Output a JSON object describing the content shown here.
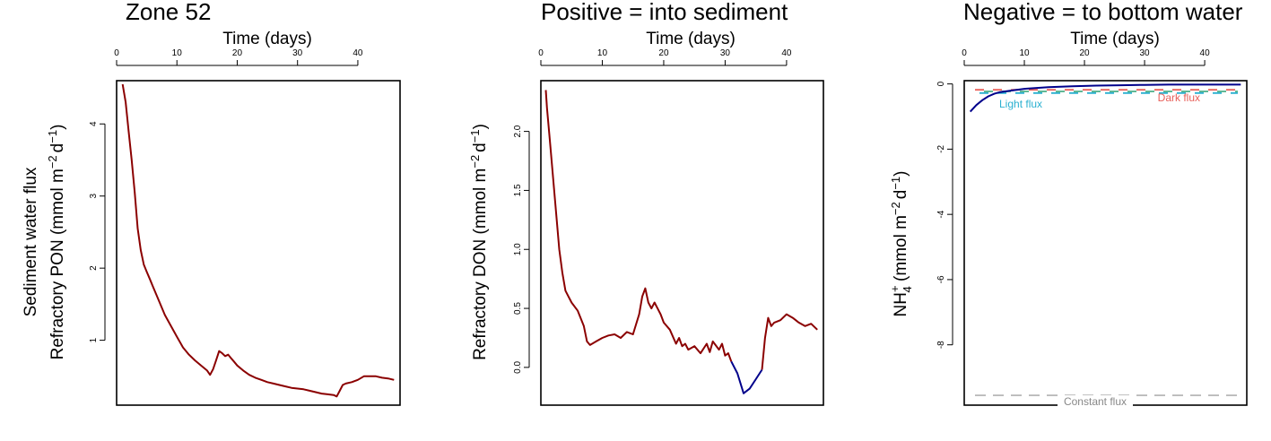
{
  "chart_data": [
    {
      "type": "line",
      "title": "Zone 52",
      "title_color": "#000000",
      "xlabel": "Time (days)",
      "ylabel": "Sediment water flux",
      "ylabel2": "Refractory PON (mmol m",
      "xlim": [
        0,
        47
      ],
      "ylim": [
        0.1,
        4.6
      ],
      "xticks": [
        0,
        10,
        20,
        30,
        40
      ],
      "yticks": [
        1,
        2,
        3,
        4
      ],
      "series": [
        {
          "color": "#8B0000",
          "x": [
            1,
            1.5,
            2,
            2.5,
            3,
            3.5,
            4,
            4.5,
            5,
            5.5,
            6,
            7,
            8,
            9,
            10,
            11,
            12,
            13,
            14,
            15,
            15.5,
            16,
            16.5,
            17,
            17.5,
            18,
            18.5,
            19,
            19.5,
            20,
            21,
            22,
            23,
            24,
            25,
            26,
            27,
            28,
            29,
            30,
            31,
            32,
            33,
            34,
            35,
            36,
            36.5,
            37,
            37.5,
            38,
            39,
            40,
            41,
            42,
            43,
            44,
            45,
            46
          ],
          "y": [
            4.55,
            4.3,
            3.9,
            3.5,
            3.05,
            2.55,
            2.25,
            2.05,
            1.95,
            1.85,
            1.75,
            1.55,
            1.35,
            1.2,
            1.05,
            0.9,
            0.8,
            0.72,
            0.65,
            0.58,
            0.52,
            0.6,
            0.72,
            0.85,
            0.82,
            0.78,
            0.8,
            0.75,
            0.7,
            0.65,
            0.58,
            0.52,
            0.48,
            0.45,
            0.42,
            0.4,
            0.38,
            0.36,
            0.34,
            0.33,
            0.32,
            0.3,
            0.28,
            0.26,
            0.25,
            0.24,
            0.22,
            0.3,
            0.38,
            0.4,
            0.42,
            0.45,
            0.5,
            0.5,
            0.5,
            0.48,
            0.47,
            0.45
          ]
        }
      ]
    },
    {
      "type": "line",
      "title": "Positive = into sediment",
      "title_color": "#8B0000",
      "xlabel": "Time (days)",
      "ylabel": "Refractory DON (mmol m",
      "xlim": [
        0,
        46
      ],
      "ylim": [
        -0.32,
        2.43
      ],
      "xticks": [
        0,
        10,
        20,
        30,
        40
      ],
      "yticks": [
        0.0,
        0.5,
        1.0,
        1.5,
        2.0
      ],
      "ytick_labels": [
        "0.0",
        "0.5",
        "1.0",
        "1.5",
        "2.0"
      ],
      "series": [
        {
          "color": "#8B0000",
          "x": [
            0.8,
            1,
            1.5,
            2,
            2.5,
            3,
            3.5,
            4,
            5,
            6,
            7,
            7.5,
            8,
            9,
            10,
            11,
            12,
            13,
            14,
            15,
            16,
            16.5,
            17,
            17.5,
            18,
            18.5,
            19,
            19.5,
            20,
            21,
            22,
            22.5,
            23,
            23.5,
            24,
            25,
            26,
            27,
            27.5,
            28,
            29,
            29.5,
            30,
            30.5,
            31
          ],
          "y": [
            2.35,
            2.2,
            1.9,
            1.6,
            1.3,
            1.0,
            0.8,
            0.65,
            0.55,
            0.48,
            0.35,
            0.22,
            0.19,
            0.22,
            0.25,
            0.27,
            0.28,
            0.25,
            0.3,
            0.28,
            0.45,
            0.6,
            0.67,
            0.55,
            0.5,
            0.55,
            0.5,
            0.45,
            0.38,
            0.32,
            0.2,
            0.25,
            0.18,
            0.2,
            0.15,
            0.18,
            0.12,
            0.2,
            0.13,
            0.22,
            0.15,
            0.2,
            0.1,
            0.12,
            0.05
          ]
        },
        {
          "color": "#00008B",
          "x": [
            31,
            32,
            33,
            34,
            35,
            36
          ],
          "y": [
            0.05,
            -0.05,
            -0.22,
            -0.18,
            -0.1,
            -0.02
          ]
        },
        {
          "color": "#8B0000",
          "x": [
            36,
            36.5,
            37,
            37.5,
            38,
            39,
            40,
            41,
            42,
            43,
            44,
            45
          ],
          "y": [
            -0.02,
            0.25,
            0.42,
            0.35,
            0.38,
            0.4,
            0.45,
            0.42,
            0.38,
            0.35,
            0.37,
            0.32
          ]
        }
      ]
    },
    {
      "type": "line",
      "title": "Negative = to bottom water",
      "title_color": "#00008B",
      "xlabel": "Time (days)",
      "ylabel": "NH",
      "ylabel_sup": "+",
      "ylabel_sub": "4",
      "ylabel_rest": " (mmol m",
      "xlim": [
        0,
        47
      ],
      "ylim": [
        -9.85,
        0.1
      ],
      "xticks": [
        0,
        10,
        20,
        30,
        40
      ],
      "yticks": [
        0,
        -2,
        -4,
        -6,
        -8
      ],
      "ytick_labels": [
        "0",
        "-2",
        "-4",
        "-6",
        "-8"
      ],
      "series": [
        {
          "color": "#00008B",
          "x": [
            1,
            2,
            3,
            4,
            5,
            6,
            8,
            10,
            14,
            18,
            22,
            26,
            30,
            34,
            38,
            42,
            46
          ],
          "y": [
            -0.85,
            -0.65,
            -0.5,
            -0.38,
            -0.3,
            -0.25,
            -0.2,
            -0.15,
            -0.1,
            -0.07,
            -0.05,
            -0.04,
            -0.03,
            -0.02,
            -0.02,
            -0.02,
            -0.02
          ]
        }
      ],
      "reference_lines": [
        {
          "label": "Dark flux",
          "y": -0.18,
          "color": "#E8605A"
        },
        {
          "label": "Light flux",
          "y": -0.28,
          "color": "#2AB0D0"
        },
        {
          "label": "",
          "y": -0.23,
          "color": "#4CAF88"
        },
        {
          "label": "Constant flux",
          "y": -9.55,
          "color": "#BBBBBB"
        }
      ],
      "annotations": {
        "dark_flux": "Dark flux",
        "light_flux": "Light flux",
        "constant_flux": "Constant flux"
      }
    }
  ],
  "labels": {
    "y_units_tail_m": "−2",
    "y_units_tail_d": "d",
    "y_units_tail_exp": "−1",
    "y_units_close": ")"
  }
}
